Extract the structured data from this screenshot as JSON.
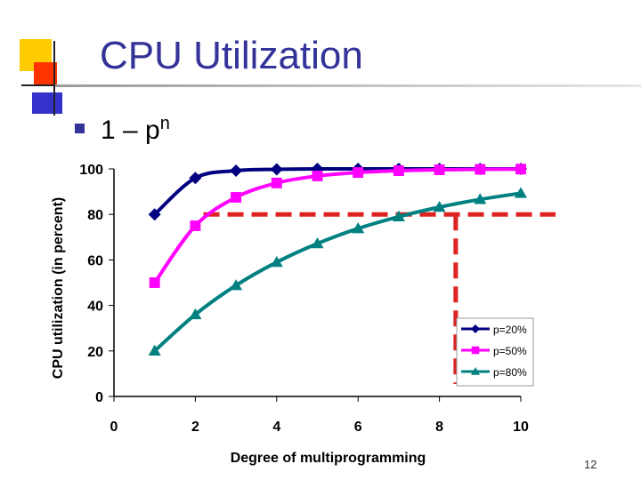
{
  "slide": {
    "title": "CPU Utilization",
    "bullet_text": "1 – p",
    "bullet_superscript": "n",
    "page_number": "12"
  },
  "colors": {
    "title": "#333399",
    "series_p20": "#000080",
    "series_p50": "#ff00ff",
    "series_p80": "#008080",
    "dashed_reference": "#dd2222"
  },
  "chart_data": {
    "type": "line",
    "title": "",
    "xlabel": "Degree of multiprogramming",
    "ylabel": "CPU utilization (in percent)",
    "xlim": [
      0,
      10
    ],
    "ylim": [
      0,
      100
    ],
    "x_ticks": [
      0,
      2,
      4,
      6,
      8,
      10
    ],
    "y_ticks": [
      0,
      20,
      40,
      60,
      80,
      100
    ],
    "x": [
      1,
      2,
      3,
      4,
      5,
      6,
      7,
      8,
      9,
      10
    ],
    "series": [
      {
        "name": "p=20%",
        "marker": "diamond",
        "color": "#000080",
        "values": [
          80,
          96,
          99.2,
          99.8,
          100,
          100,
          100,
          100,
          100,
          100
        ]
      },
      {
        "name": "p=50%",
        "marker": "square",
        "color": "#ff00ff",
        "values": [
          50,
          75,
          87.5,
          93.8,
          96.9,
          98.4,
          99.2,
          99.6,
          99.8,
          99.9
        ]
      },
      {
        "name": "p=80%",
        "marker": "triangle",
        "color": "#008080",
        "values": [
          20,
          36,
          48.8,
          59,
          67.2,
          73.8,
          79,
          83.2,
          86.6,
          89.3
        ]
      }
    ],
    "reference_line": {
      "y": 80,
      "x_from": 2.2,
      "x_to": 11,
      "drop_x": 8.4
    },
    "grid": false,
    "legend_position": "bottom-right"
  }
}
